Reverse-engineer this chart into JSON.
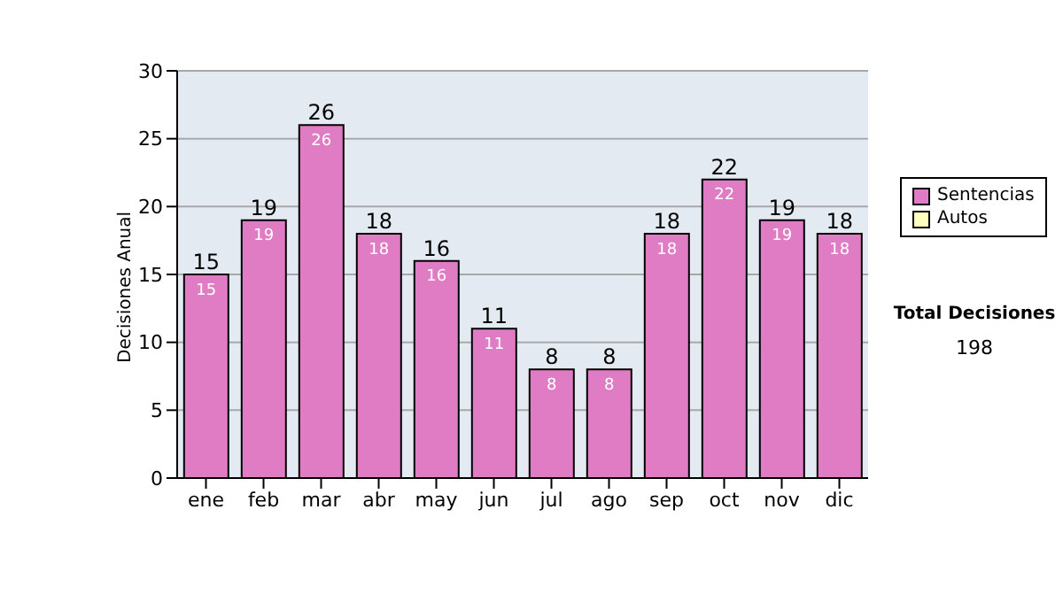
{
  "chart_data": {
    "type": "bar",
    "stacked": true,
    "ylabel": "Decisiones Anual",
    "categories": [
      "ene",
      "feb",
      "mar",
      "abr",
      "may",
      "jun",
      "jul",
      "ago",
      "sep",
      "oct",
      "nov",
      "dic"
    ],
    "series": [
      {
        "name": "Sentencias",
        "color": "#e07cc4",
        "values": [
          15,
          19,
          26,
          18,
          16,
          11,
          8,
          8,
          18,
          22,
          19,
          18
        ],
        "value_labels": [
          "15",
          "19",
          "26",
          "18",
          "16",
          "11",
          "8",
          "8",
          "18",
          "22",
          "19",
          "18"
        ]
      },
      {
        "name": "Autos",
        "color": "#ffffc0",
        "values": [
          0,
          0,
          0,
          0,
          0,
          0,
          0,
          0,
          0,
          0,
          0,
          0
        ]
      }
    ],
    "totals": [
      "15",
      "19",
      "26",
      "18",
      "16",
      "11",
      "8",
      "8",
      "18",
      "22",
      "19",
      "18"
    ],
    "ylim": [
      0,
      30
    ],
    "yticks": [
      0,
      5,
      10,
      15,
      20,
      25,
      30
    ],
    "grid": "y",
    "legend": "right",
    "annotations": [
      "Total Decisiones",
      "198"
    ]
  }
}
